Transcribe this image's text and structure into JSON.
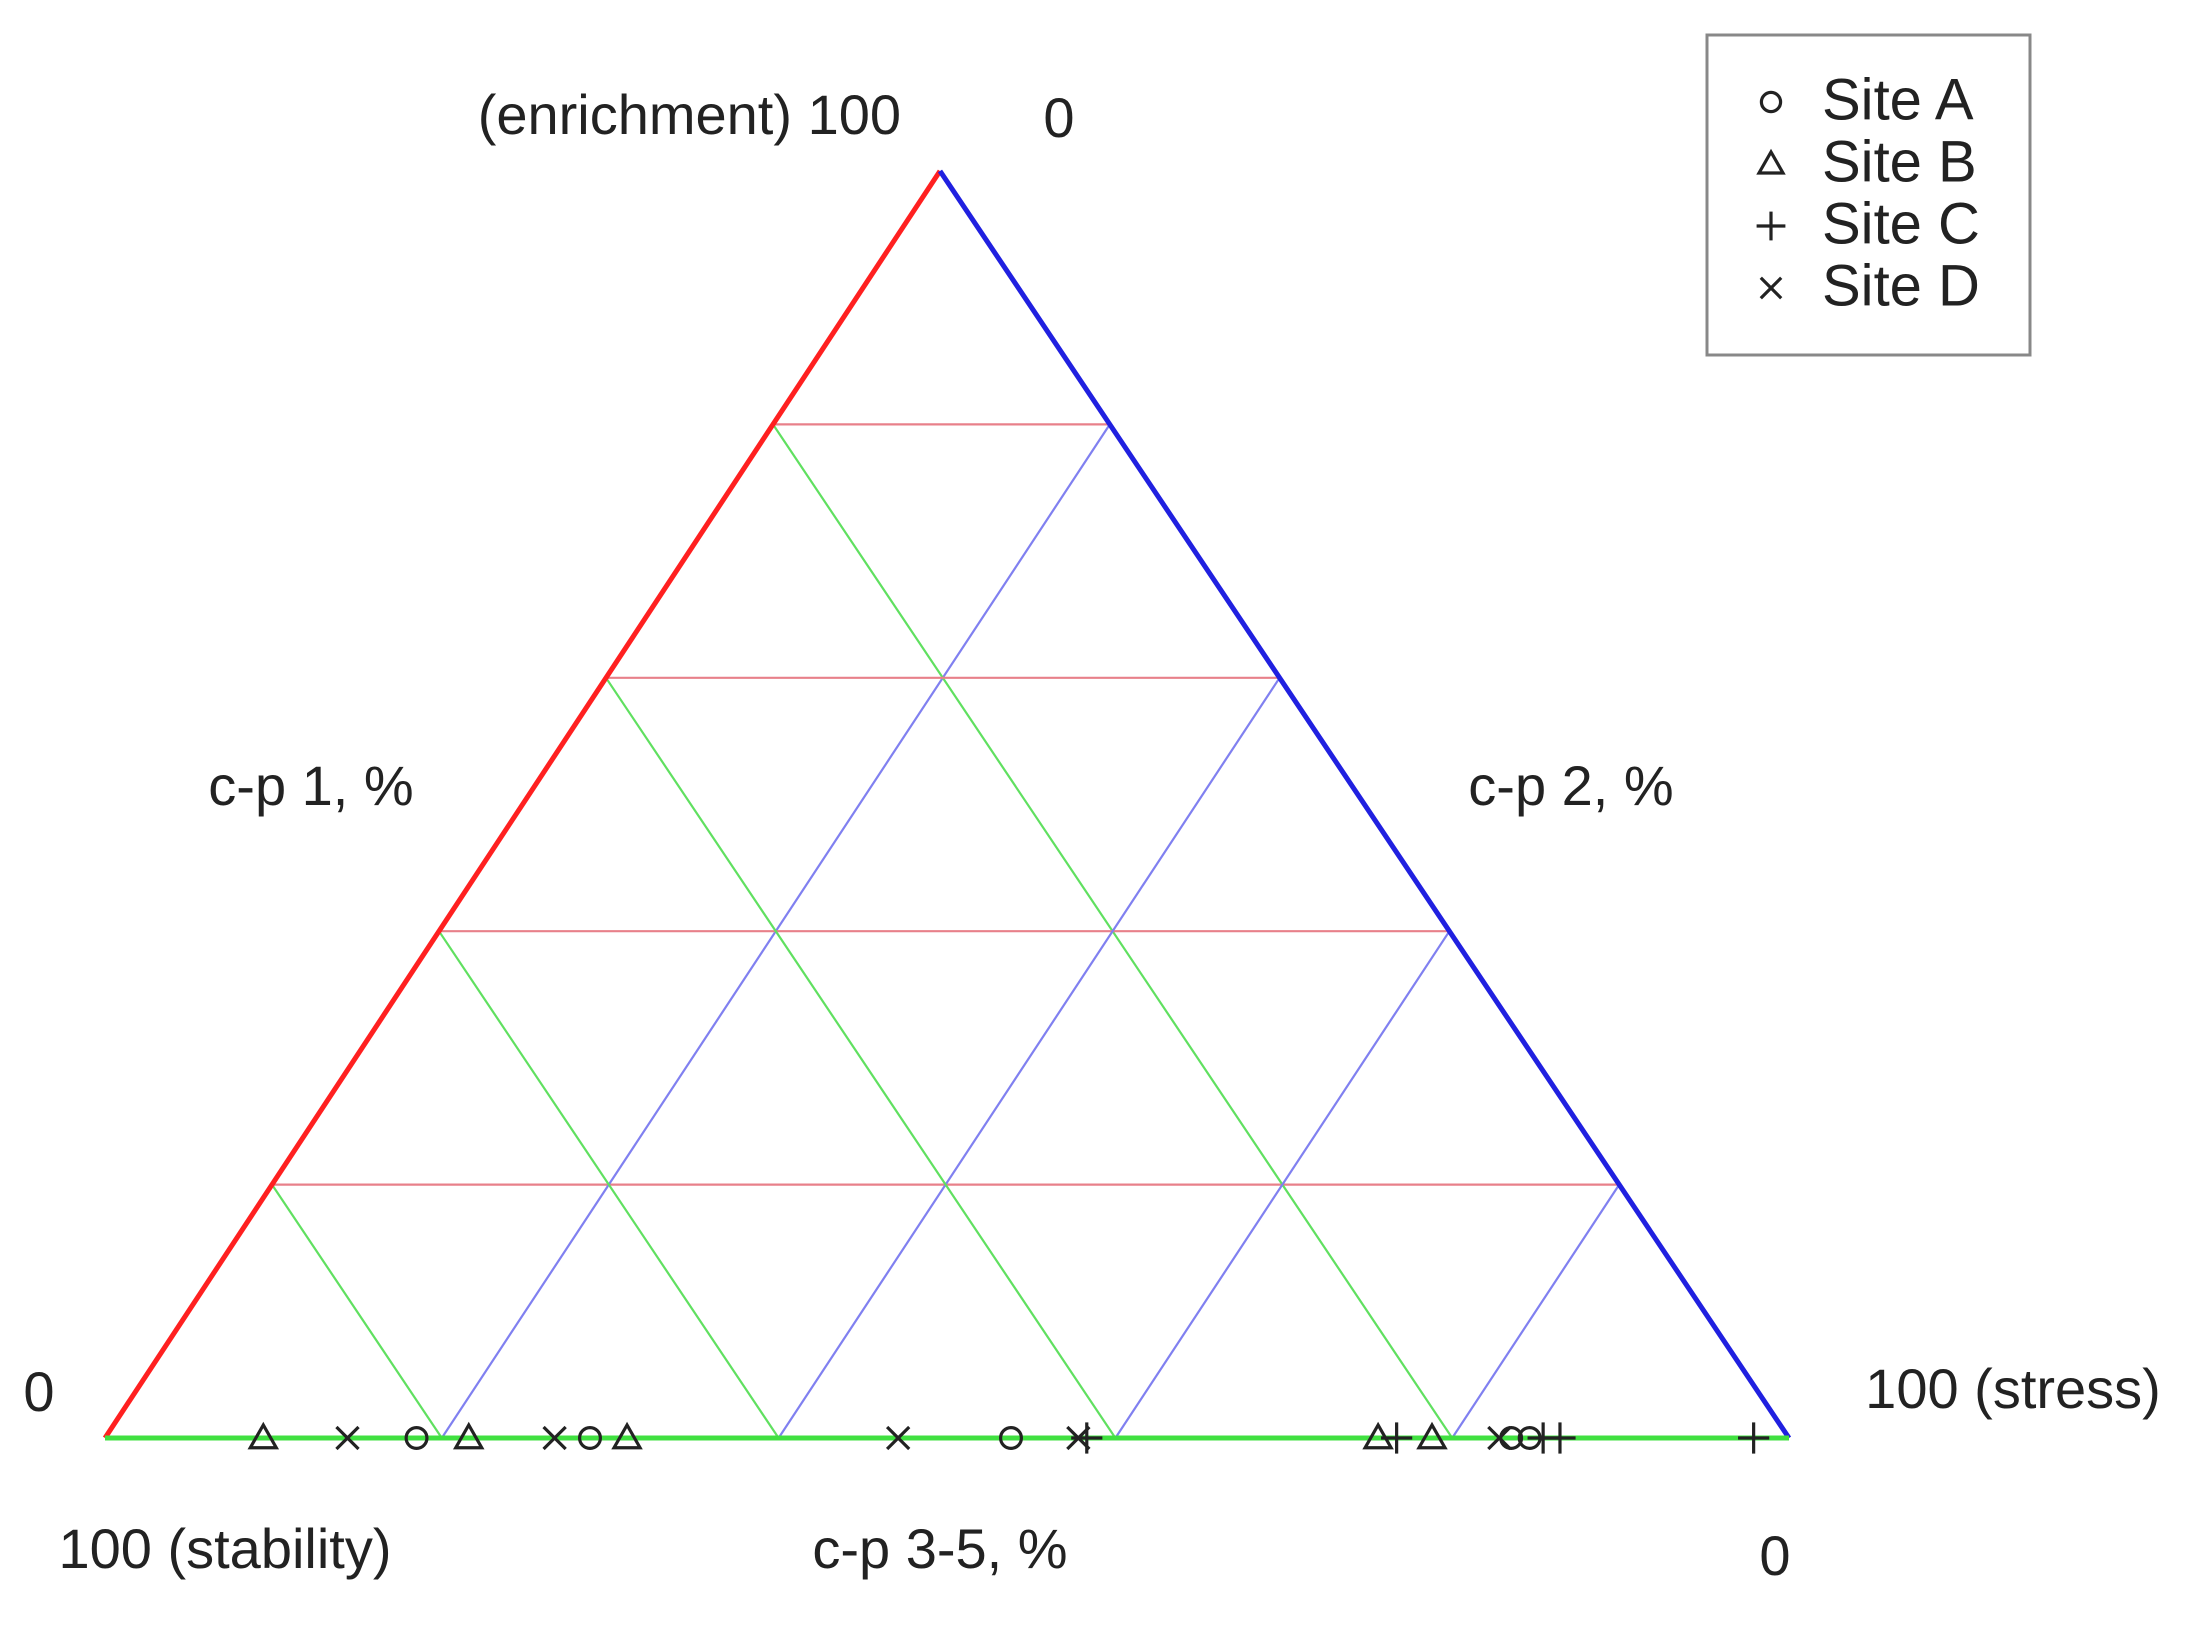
{
  "chart_data": {
    "type": "ternary",
    "axes": [
      {
        "label": "c-p 1, %",
        "color": "#ff2020",
        "grid_color": "#e8808a",
        "ticks": [
          {
            "value": 100,
            "label": "(enrichment) 100"
          },
          0
        ]
      },
      {
        "label": "c-p 2, %",
        "color": "#2020e0",
        "grid_color": "#8080f0",
        "ticks": [
          0,
          {
            "value": 100,
            "label": "100 (stress)"
          }
        ]
      },
      {
        "label": "c-p 3-5, %",
        "color": "#40e040",
        "grid_color": "#60e060",
        "ticks": [
          {
            "value": 100,
            "label": "100 (stability)"
          },
          0
        ]
      }
    ],
    "grid": [
      20,
      40,
      60,
      80
    ],
    "legend": "upper right",
    "series": [
      {
        "name": "Site A",
        "marker": "circle",
        "color": "#222222",
        "values": [
          [
            0,
            18.5,
            81.5
          ],
          [
            0,
            28.8,
            71.2
          ],
          [
            0,
            53.8,
            46.2
          ],
          [
            0,
            83.5,
            16.5
          ],
          [
            0,
            84.6,
            15.4
          ]
        ]
      },
      {
        "name": "Site B",
        "marker": "triangle",
        "color": "#222222",
        "values": [
          [
            0,
            9.4,
            90.6
          ],
          [
            0,
            21.6,
            78.4
          ],
          [
            0,
            31,
            69
          ],
          [
            0,
            75.6,
            24.4
          ],
          [
            0,
            78.8,
            21.2
          ]
        ]
      },
      {
        "name": "Site C",
        "marker": "plus",
        "color": "#222222",
        "values": [
          [
            0,
            58.3,
            41.7
          ],
          [
            0,
            76.7,
            23.3
          ],
          [
            0,
            85.4,
            14.6
          ],
          [
            0,
            86.4,
            13.6
          ],
          [
            0,
            97.9,
            2.1
          ]
        ]
      },
      {
        "name": "Site D",
        "marker": "cross",
        "color": "#222222",
        "values": [
          [
            0,
            14.4,
            85.6
          ],
          [
            0,
            26.7,
            73.3
          ],
          [
            0,
            47.1,
            52.9
          ],
          [
            0,
            57.8,
            42.2
          ],
          [
            0,
            82.8,
            17.2
          ]
        ]
      }
    ]
  }
}
